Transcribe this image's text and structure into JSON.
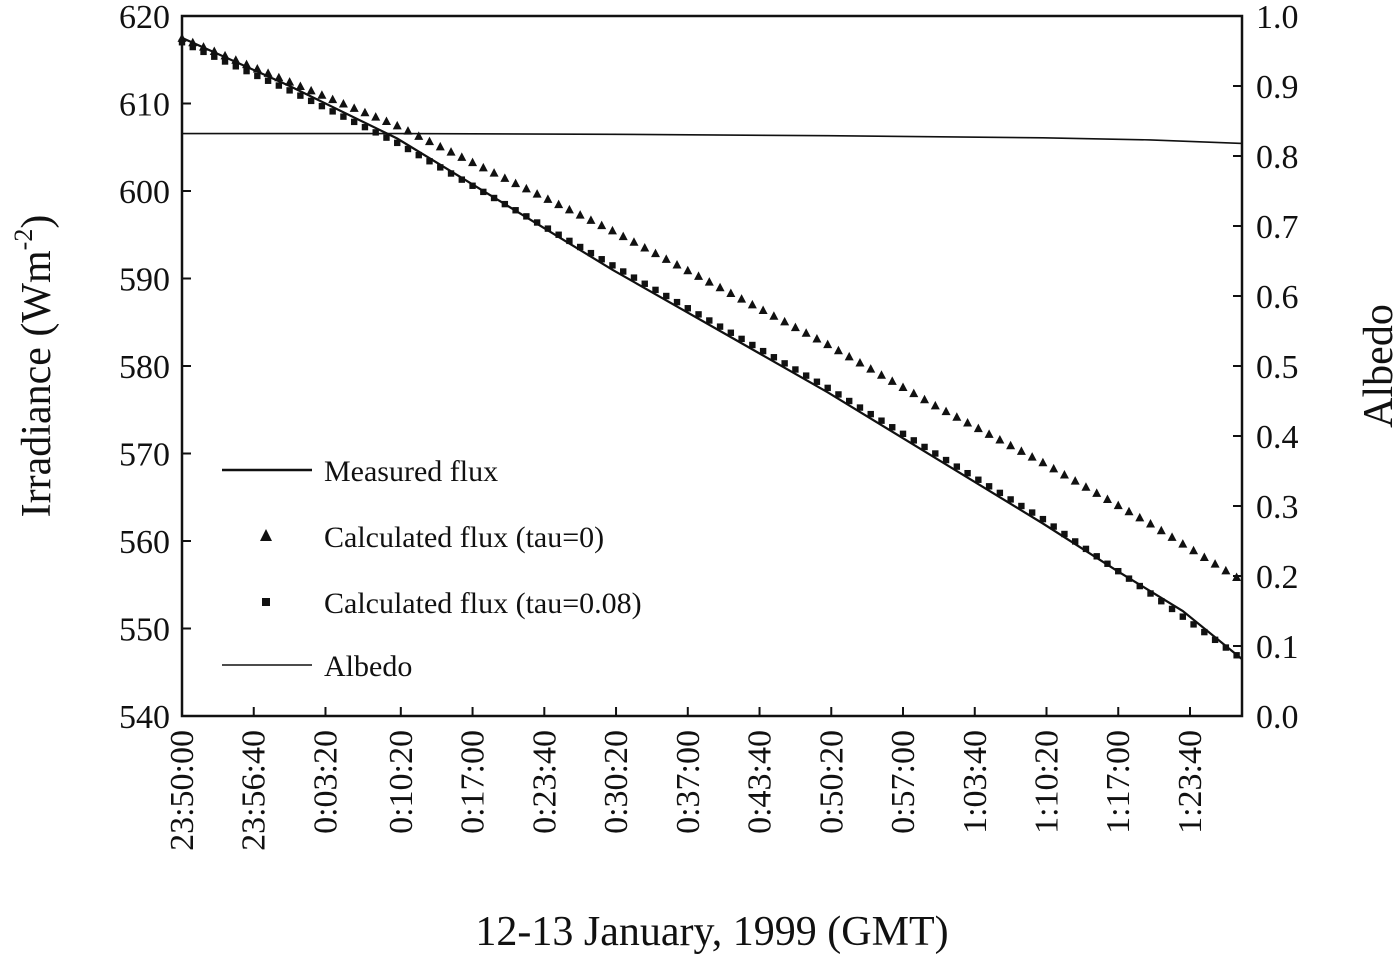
{
  "chart_data": {
    "type": "line",
    "x_axis": {
      "label": "12-13 January, 1999 (GMT)",
      "tick_labels": [
        "23:50:00",
        "23:56:40",
        "0:03:20",
        "0:10:20",
        "0:17:00",
        "0:23:40",
        "0:30:20",
        "0:37:00",
        "0:43:40",
        "0:50:20",
        "0:57:00",
        "1:03:40",
        "1:10:20",
        "1:17:00",
        "1:23:40"
      ],
      "tick_minutes": [
        0,
        6.667,
        13.333,
        20.333,
        27,
        33.667,
        40.333,
        47,
        53.667,
        60.333,
        67,
        73.667,
        80.333,
        87,
        93.667
      ],
      "range_minutes": [
        0,
        98.5
      ]
    },
    "y_axis_left": {
      "label_main": "Irradiance (Wm",
      "label_sup": "-2",
      "label_close": ")",
      "range": [
        540,
        620
      ],
      "ticks": [
        540,
        550,
        560,
        570,
        580,
        590,
        600,
        610,
        620
      ]
    },
    "y_axis_right": {
      "label": "Albedo",
      "range": [
        0.0,
        1.0
      ],
      "ticks": [
        "0.0",
        "0.1",
        "0.2",
        "0.3",
        "0.4",
        "0.5",
        "0.6",
        "0.7",
        "0.8",
        "0.9",
        "1.0"
      ]
    },
    "series": [
      {
        "name": "Measured flux",
        "axis": "left",
        "style": "solid-line",
        "x": [
          0,
          10,
          20,
          30,
          40,
          50,
          60,
          70,
          80,
          87,
          93,
          98.5
        ],
        "y": [
          617.5,
          612.0,
          606.0,
          598.5,
          591.0,
          584.0,
          577.0,
          569.5,
          562.0,
          556.5,
          552.0,
          546.5
        ]
      },
      {
        "name": "Calculated flux (tau=0)",
        "axis": "left",
        "style": "triangle-markers",
        "x": [
          0,
          10,
          20,
          30,
          40,
          50,
          60,
          70,
          80,
          90,
          98.5
        ],
        "y": [
          617.5,
          612.5,
          607.5,
          601.5,
          595.5,
          589.0,
          582.5,
          575.5,
          569.0,
          562.0,
          555.5
        ]
      },
      {
        "name": "Calculated flux (tau=0.08)",
        "axis": "left",
        "style": "square-markers",
        "x": [
          0,
          10,
          20,
          30,
          40,
          50,
          60,
          70,
          80,
          90,
          98.5
        ],
        "y": [
          617.0,
          611.5,
          605.5,
          598.5,
          591.5,
          584.5,
          577.5,
          570.0,
          562.5,
          554.0,
          546.5
        ]
      },
      {
        "name": "Albedo",
        "axis": "right",
        "style": "thin-line",
        "x": [
          0,
          20,
          40,
          60,
          80,
          90,
          98.5
        ],
        "y": [
          0.832,
          0.832,
          0.831,
          0.829,
          0.826,
          0.823,
          0.818
        ]
      }
    ],
    "legend": {
      "placement": "lower-left",
      "entries": [
        "Measured flux",
        "Calculated flux (tau=0)",
        "Calculated flux (tau=0.08)",
        "Albedo"
      ]
    },
    "grid": false
  }
}
